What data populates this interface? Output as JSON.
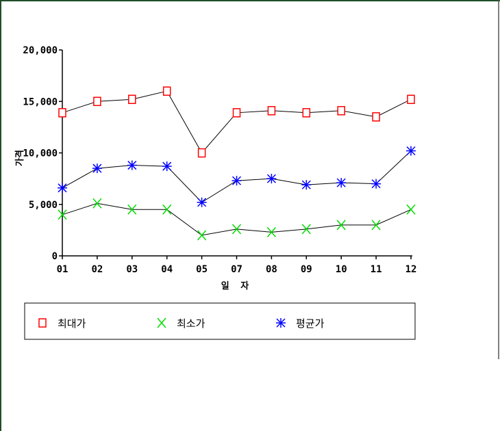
{
  "chart_data": {
    "type": "line",
    "title": "",
    "xlabel": "일 자",
    "ylabel": "가격",
    "categories": [
      "01",
      "02",
      "03",
      "04",
      "05",
      "07",
      "08",
      "09",
      "10",
      "11",
      "12"
    ],
    "ylim": [
      0,
      20000
    ],
    "yticks": [
      "20,000",
      "15,000",
      "10,000",
      "5,000",
      "0"
    ],
    "ytick_values": [
      20000,
      15000,
      10000,
      5000,
      0
    ],
    "grid": false,
    "legend_position": "bottom",
    "series": [
      {
        "name": "최대가",
        "marker": "square",
        "color": "#ff0000",
        "values": [
          13900,
          15000,
          15200,
          16000,
          10000,
          13900,
          14100,
          13900,
          14100,
          13500,
          15200
        ]
      },
      {
        "name": "최소가",
        "marker": "x",
        "color": "#00dd00",
        "values": [
          4000,
          5100,
          4500,
          4500,
          2000,
          2600,
          2300,
          2600,
          3000,
          3000,
          4500
        ]
      },
      {
        "name": "평균가",
        "marker": "asterisk",
        "color": "#0000ff",
        "values": [
          6600,
          8500,
          8800,
          8700,
          5200,
          7300,
          7500,
          6900,
          7100,
          7000,
          10200
        ]
      }
    ]
  },
  "colors": {
    "line": "#000000",
    "frame_left": "#1f4e2a"
  }
}
